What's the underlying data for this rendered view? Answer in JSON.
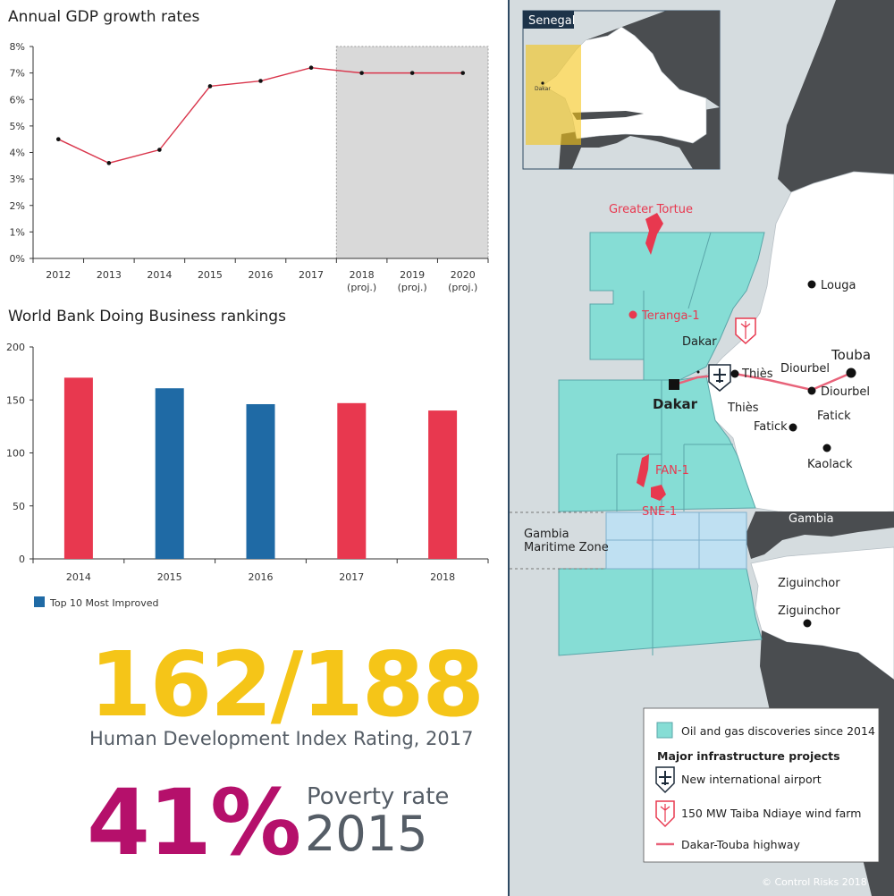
{
  "chart_data": [
    {
      "type": "line",
      "title": "Annual GDP growth rates",
      "categories": [
        "2012",
        "2013",
        "2014",
        "2015",
        "2016",
        "2017",
        "2018\n(proj.)",
        "2019\n(proj.)",
        "2020\n(proj.)"
      ],
      "values": [
        4.5,
        3.6,
        4.1,
        6.5,
        6.7,
        7.2,
        7.0,
        7.0,
        7.0
      ],
      "ylim": [
        0,
        8
      ],
      "yticks": [
        "0%",
        "1%",
        "2%",
        "3%",
        "4%",
        "5%",
        "6%",
        "7%",
        "8%"
      ],
      "shaded_from_category": "2018\n(proj.)",
      "line_color": "#d9354b",
      "shade_color": "#d9d9d9",
      "grid": false
    },
    {
      "type": "bar",
      "title": "World Bank Doing Business rankings",
      "categories": [
        "2014",
        "2015",
        "2016",
        "2017",
        "2018"
      ],
      "values": [
        171,
        161,
        146,
        147,
        140
      ],
      "bar_colors": [
        "#e8384f",
        "#1f6aa5",
        "#1f6aa5",
        "#e8384f",
        "#e8384f"
      ],
      "ylim": [
        0,
        200
      ],
      "yticks": [
        "0",
        "50",
        "100",
        "150",
        "200"
      ],
      "legend": [
        {
          "label": "Top 10 Most Improved",
          "color": "#1f6aa5"
        }
      ],
      "legend_position": "bottom-left",
      "grid": false
    }
  ],
  "stats": {
    "hdi_value": "162/188",
    "hdi_label": "Human Development Index Rating, 2017",
    "poverty_value": "41%",
    "poverty_label": "Poverty rate",
    "poverty_year": "2015",
    "hdi_color": "#f5c518",
    "poverty_color": "#b5106b"
  },
  "map": {
    "inset_title": "Senegal",
    "inset_city": "Dakar",
    "fields": {
      "greater_tortue": "Greater Tortue",
      "teranga": "Teranga-1",
      "fan": "FAN-1",
      "sne": "SNE-1"
    },
    "places": {
      "louga": "Louga",
      "dakar_small": "Dakar",
      "dakar": "Dakar",
      "thies1": "Thiès",
      "thies2": "Thiès",
      "diourbel1": "Diourbel",
      "diourbel2": "Diourbel",
      "touba": "Touba",
      "fatick1": "Fatick",
      "fatick2": "Fatick",
      "kaolack": "Kaolack",
      "gambia": "Gambia",
      "gambia_zone_1": "Gambia",
      "gambia_zone_2": "Maritime Zone",
      "ziguinchor1": "Ziguinchor",
      "ziguinchor2": "Ziguinchor"
    },
    "legend": {
      "oil": "Oil and gas discoveries since 2014",
      "heading": "Major infrastructure projects",
      "airport": "New international airport",
      "wind": "150 MW Taiba Ndiaye wind farm",
      "highway": "Dakar-Touba highway"
    },
    "copyright": "© Control Risks 2018",
    "colors": {
      "sea": "#d5dcdf",
      "land": "#ffffff",
      "neighbor": "#4a4d50",
      "oil": "#86ddd5",
      "gambia_zone": "#bfe0f2",
      "highway": "#e8637a",
      "field": "#e8384f"
    }
  }
}
